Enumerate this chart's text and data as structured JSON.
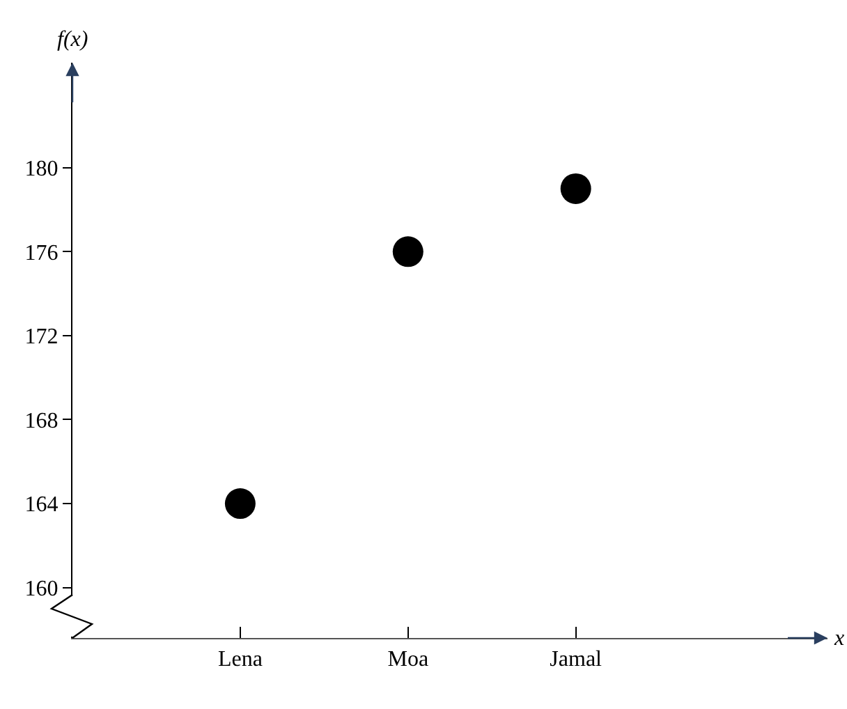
{
  "chart_data": {
    "type": "scatter",
    "categories": [
      "Lena",
      "Moa",
      "Jamal"
    ],
    "values": [
      164,
      176,
      179
    ],
    "color": "#000000",
    "marker": "circle",
    "annotations": [
      "x"
    ],
    "ylabel": "f(x)",
    "ylim": [
      157.6,
      185
    ],
    "yticks": [
      160,
      164,
      168,
      172,
      176,
      180
    ],
    "grid": false,
    "legend": false
  }
}
